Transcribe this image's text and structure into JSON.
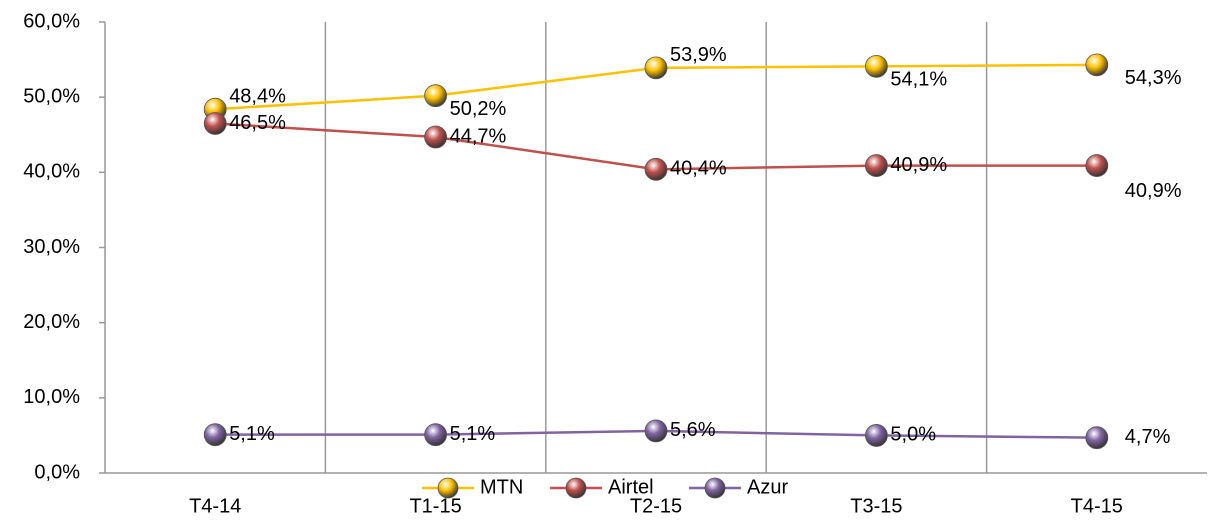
{
  "chart_data": {
    "type": "line",
    "categories": [
      "T4-14",
      "T1-15",
      "T2-15",
      "T3-15",
      "T4-15"
    ],
    "series": [
      {
        "name": "MTN",
        "color": "#FFC000",
        "values": [
          48.4,
          50.2,
          53.9,
          54.1,
          54.3
        ],
        "value_labels": [
          "48,4%",
          "50,2%",
          "53,9%",
          "54,1%",
          "54,3%"
        ]
      },
      {
        "name": "Airtel",
        "color": "#C0504D",
        "values": [
          46.5,
          44.7,
          40.4,
          40.9,
          40.9
        ],
        "value_labels": [
          "46,5%",
          "44,7%",
          "40,4%",
          "40,9%",
          "40,9%"
        ]
      },
      {
        "name": "Azur",
        "color": "#8064A2",
        "values": [
          5.1,
          5.1,
          5.6,
          5.0,
          4.7
        ],
        "value_labels": [
          "5,1%",
          "5,1%",
          "5,6%",
          "5,0%",
          "4,7%"
        ]
      }
    ],
    "ylim": [
      0,
      60
    ],
    "yticks": [
      {
        "value": 0,
        "label": "0,0%"
      },
      {
        "value": 10,
        "label": "10,0%"
      },
      {
        "value": 20,
        "label": "20,0%"
      },
      {
        "value": 30,
        "label": "30,0%"
      },
      {
        "value": 40,
        "label": "40,0%"
      },
      {
        "value": 50,
        "label": "50,0%"
      },
      {
        "value": 60,
        "label": "60,0%"
      }
    ],
    "legend": "bottom"
  }
}
